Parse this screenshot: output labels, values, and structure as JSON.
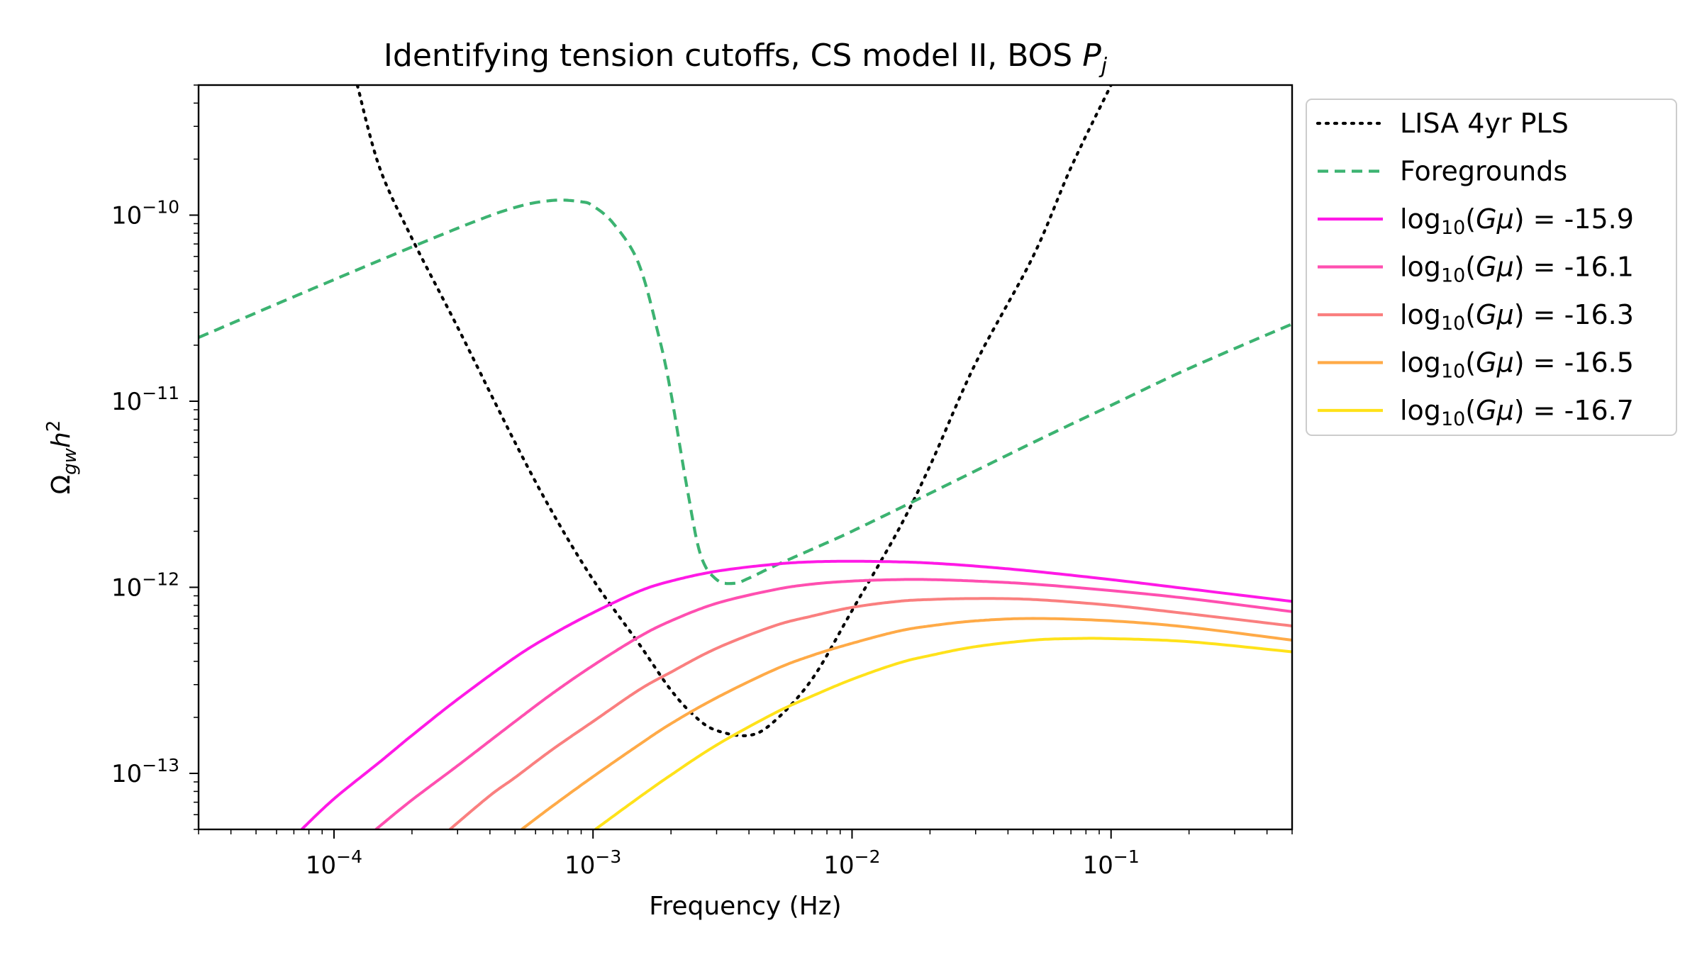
{
  "chart_data": {
    "type": "line",
    "title": "Identifying tension cutoffs, CS model II, BOS ",
    "title_math": "P",
    "title_math_sub": "j",
    "xlabel": "Frequency (Hz)",
    "ylabel_symbol": "Ω",
    "ylabel_sub": "gw",
    "ylabel_tail": "h",
    "ylabel_sup": "2",
    "x_scale": "log",
    "y_scale": "log",
    "xlim": [
      3e-05,
      0.5
    ],
    "ylim": [
      5e-14,
      5e-10
    ],
    "x_ticks": [
      {
        "value": 0.0001,
        "base": "10",
        "exp": "−4"
      },
      {
        "value": 0.001,
        "base": "10",
        "exp": "−3"
      },
      {
        "value": 0.01,
        "base": "10",
        "exp": "−2"
      },
      {
        "value": 0.1,
        "base": "10",
        "exp": "−1"
      }
    ],
    "y_ticks": [
      {
        "value": 1e-13,
        "base": "10",
        "exp": "−13"
      },
      {
        "value": 1e-12,
        "base": "10",
        "exp": "−12"
      },
      {
        "value": 1e-11,
        "base": "10",
        "exp": "−11"
      },
      {
        "value": 1e-10,
        "base": "10",
        "exp": "−10"
      }
    ],
    "legend_position": "outside-right",
    "series": [
      {
        "name": "LISA 4yr PLS",
        "style": "dotted",
        "color": "#000000",
        "x": [
          0.000123,
          0.00015,
          0.0002,
          0.0003,
          0.0005,
          0.0007,
          0.001,
          0.0015,
          0.002,
          0.0025,
          0.003,
          0.004,
          0.005,
          0.007,
          0.01,
          0.015,
          0.02,
          0.03,
          0.05,
          0.07,
          0.1
        ],
        "y": [
          5e-10,
          1.8e-10,
          7.5e-11,
          2.5e-11,
          6e-12,
          2.5e-12,
          1.1e-12,
          5e-13,
          2.8e-13,
          2e-13,
          1.7e-13,
          1.6e-13,
          1.9e-13,
          3.2e-13,
          7.5e-13,
          2e-12,
          4.5e-12,
          1.6e-11,
          6e-11,
          1.8e-10,
          5e-10
        ]
      },
      {
        "name": "Foregrounds",
        "style": "dashed",
        "color": "#3cb371",
        "x": [
          3e-05,
          0.0001,
          0.0003,
          0.0005,
          0.0007,
          0.0009,
          0.001,
          0.0012,
          0.0015,
          0.0018,
          0.002,
          0.0023,
          0.0026,
          0.003,
          0.0035,
          0.004,
          0.005,
          0.007,
          0.01,
          0.02,
          0.05,
          0.1,
          0.2,
          0.5
        ],
        "y": [
          2.2e-11,
          4.5e-11,
          8.5e-11,
          1.1e-10,
          1.2e-10,
          1.18e-10,
          1.12e-10,
          9e-11,
          5.5e-11,
          2.2e-11,
          1.1e-11,
          3.5e-12,
          1.5e-12,
          1.1e-12,
          1.05e-12,
          1.12e-12,
          1.3e-12,
          1.6e-12,
          2e-12,
          3.2e-12,
          6e-12,
          9.5e-12,
          1.5e-11,
          2.6e-11
        ]
      },
      {
        "name": "-15.9",
        "label_prefix": "log",
        "label_sub": "10",
        "label_mid": "(",
        "label_math": "Gμ",
        "label_suffix": ") =  -15.9",
        "style": "solid",
        "color": "#ff19e6",
        "x": [
          7.5e-05,
          0.0001,
          0.00015,
          0.0002,
          0.0003,
          0.0005,
          0.0007,
          0.001,
          0.0015,
          0.002,
          0.003,
          0.005,
          0.007,
          0.01,
          0.015,
          0.02,
          0.03,
          0.05,
          0.1,
          0.2,
          0.5
        ],
        "y": [
          5e-14,
          7.3e-14,
          1.15e-13,
          1.6e-13,
          2.5e-13,
          4.2e-13,
          5.6e-13,
          7.3e-13,
          9.5e-13,
          1.08e-12,
          1.22e-12,
          1.33e-12,
          1.37e-12,
          1.38e-12,
          1.37e-12,
          1.35e-12,
          1.3e-12,
          1.22e-12,
          1.1e-12,
          9.8e-13,
          8.4e-13
        ]
      },
      {
        "name": "-16.1",
        "label_prefix": "log",
        "label_sub": "10",
        "label_mid": "(",
        "label_math": "Gμ",
        "label_suffix": ") =  -16.1",
        "style": "solid",
        "color": "#ff4fb0",
        "x": [
          0.000145,
          0.0002,
          0.0003,
          0.0005,
          0.0007,
          0.001,
          0.0015,
          0.002,
          0.003,
          0.005,
          0.007,
          0.01,
          0.015,
          0.02,
          0.03,
          0.05,
          0.1,
          0.2,
          0.5
        ],
        "y": [
          5e-14,
          7.2e-14,
          1.1e-13,
          1.9e-13,
          2.7e-13,
          3.8e-13,
          5.4e-13,
          6.6e-13,
          8.2e-13,
          9.7e-13,
          1.04e-12,
          1.08e-12,
          1.1e-12,
          1.1e-12,
          1.08e-12,
          1.04e-12,
          9.6e-13,
          8.7e-13,
          7.4e-13
        ]
      },
      {
        "name": "-16.3",
        "label_prefix": "log",
        "label_sub": "10",
        "label_mid": "(",
        "label_math": "Gμ",
        "label_suffix": ") =  -16.3",
        "style": "solid",
        "color": "#fa7f7f",
        "x": [
          0.00028,
          0.0004,
          0.0005,
          0.0007,
          0.001,
          0.0015,
          0.002,
          0.003,
          0.005,
          0.007,
          0.01,
          0.015,
          0.02,
          0.03,
          0.05,
          0.1,
          0.2,
          0.5
        ],
        "y": [
          5e-14,
          7.6e-14,
          9.5e-14,
          1.35e-13,
          1.9e-13,
          2.8e-13,
          3.5e-13,
          4.7e-13,
          6.2e-13,
          7e-13,
          7.8e-13,
          8.4e-13,
          8.6e-13,
          8.7e-13,
          8.6e-13,
          8e-13,
          7.2e-13,
          6.2e-13
        ]
      },
      {
        "name": "-16.5",
        "label_prefix": "log",
        "label_sub": "10",
        "label_mid": "(",
        "label_math": "Gμ",
        "label_suffix": ") =  -16.5",
        "style": "solid",
        "color": "#ffaa47",
        "x": [
          0.00053,
          0.0007,
          0.001,
          0.0015,
          0.002,
          0.003,
          0.005,
          0.007,
          0.01,
          0.015,
          0.02,
          0.03,
          0.05,
          0.1,
          0.2,
          0.5
        ],
        "y": [
          5e-14,
          6.7e-14,
          9.6e-14,
          1.42e-13,
          1.85e-13,
          2.55e-13,
          3.6e-13,
          4.3e-13,
          5e-13,
          5.8e-13,
          6.2e-13,
          6.6e-13,
          6.8e-13,
          6.6e-13,
          6.1e-13,
          5.2e-13
        ]
      },
      {
        "name": "-16.7",
        "label_prefix": "log",
        "label_sub": "10",
        "label_mid": "(",
        "label_math": "Gμ",
        "label_suffix": ") =  -16.7",
        "style": "solid",
        "color": "#ffe21a",
        "x": [
          0.00102,
          0.0015,
          0.002,
          0.003,
          0.005,
          0.007,
          0.01,
          0.015,
          0.02,
          0.03,
          0.05,
          0.07,
          0.1,
          0.2,
          0.5
        ],
        "y": [
          5e-14,
          7.4e-14,
          9.8e-14,
          1.42e-13,
          2.1e-13,
          2.6e-13,
          3.2e-13,
          3.9e-13,
          4.3e-13,
          4.8e-13,
          5.2e-13,
          5.3e-13,
          5.3e-13,
          5.1e-13,
          4.5e-13
        ]
      }
    ]
  }
}
